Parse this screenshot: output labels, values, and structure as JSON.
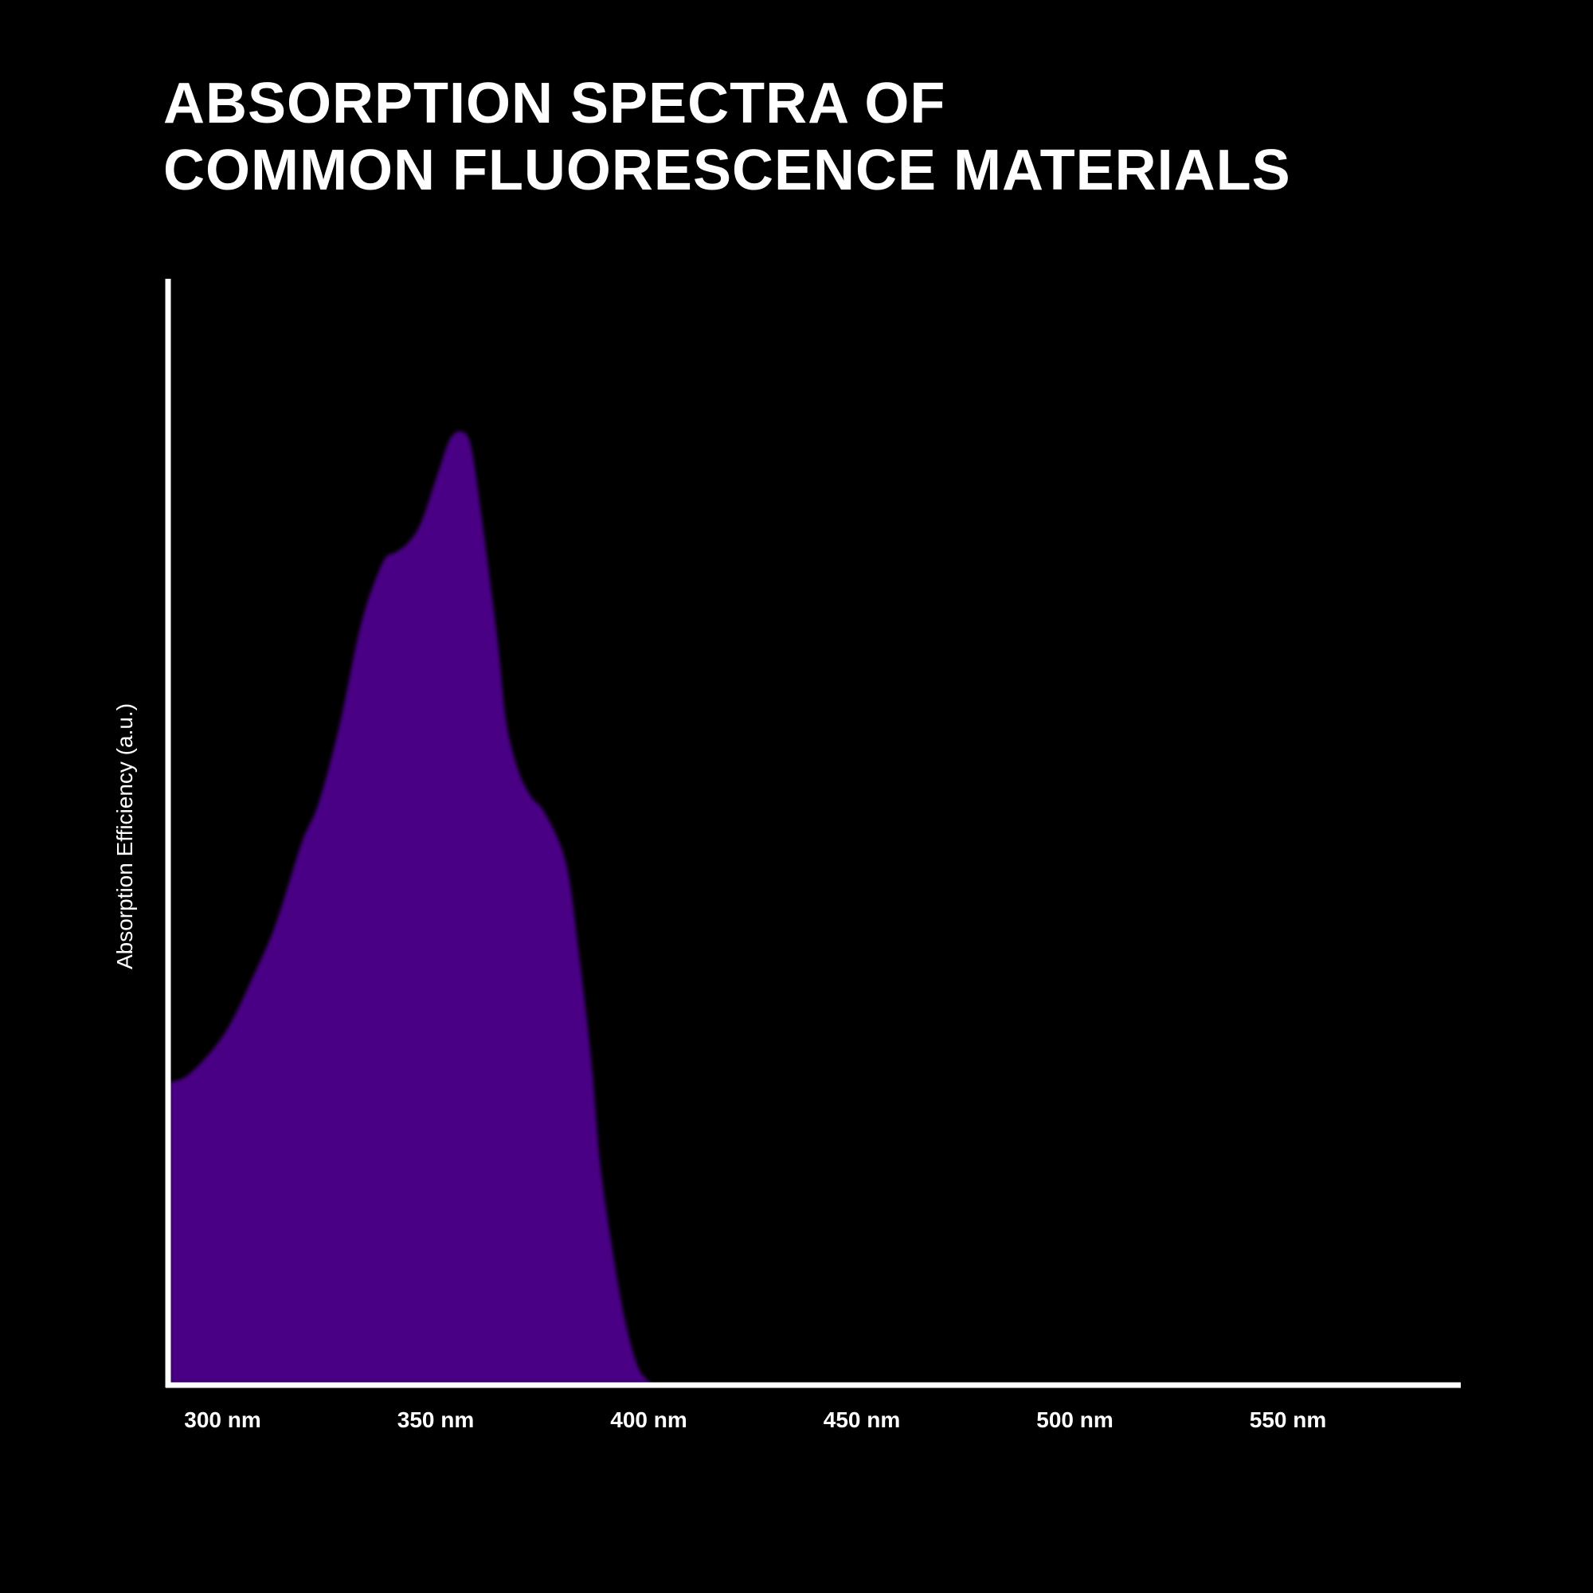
{
  "title_lines": [
    "ABSORPTION SPECTRA OF",
    "COMMON FLUORESCENCE MATERIALS"
  ],
  "colors": {
    "background": "#000000",
    "fill": "#4a0085",
    "axis": "#ffffff",
    "text": "#ffffff"
  },
  "chart_data": {
    "type": "area",
    "title": "ABSORPTION SPECTRA OF COMMON FLUORESCENCE MATERIALS",
    "xlabel": "",
    "ylabel": "Absorption Efficiency (a.u.)",
    "x_ticks": [
      300,
      350,
      400,
      450,
      500,
      550
    ],
    "x_tick_labels": [
      "300 nm",
      "350 nm",
      "400 nm",
      "450 nm",
      "500 nm",
      "550 nm"
    ],
    "xlim": [
      287,
      590
    ],
    "ylim": [
      0,
      1
    ],
    "grid": false,
    "series": [
      {
        "x": [
          287,
          292,
          300,
          307,
          312,
          318,
          322,
          327,
          332,
          337,
          340,
          343,
          346,
          350,
          353,
          356,
          358,
          361,
          364,
          366,
          369,
          372,
          375,
          380,
          383,
          386,
          388,
          391,
          394,
          397,
          400
        ],
        "y": [
          0.3,
          0.31,
          0.35,
          0.41,
          0.46,
          0.54,
          0.58,
          0.66,
          0.76,
          0.82,
          0.83,
          0.84,
          0.86,
          0.91,
          0.945,
          0.95,
          0.93,
          0.84,
          0.74,
          0.66,
          0.61,
          0.585,
          0.57,
          0.52,
          0.43,
          0.32,
          0.22,
          0.13,
          0.06,
          0.015,
          0.0
        ]
      }
    ]
  }
}
